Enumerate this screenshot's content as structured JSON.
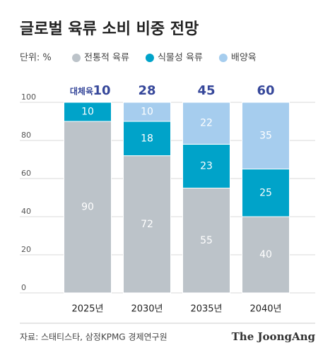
{
  "chart_data": {
    "type": "stacked_bar",
    "title": "글로벌 육류 소비 비중 전망",
    "unit": "단위: %",
    "categories": [
      "2025년",
      "2030년",
      "2035년",
      "2040년"
    ],
    "series": [
      {
        "name": "전통적 육류",
        "color": "#bcc3c9",
        "values": [
          90,
          72,
          55,
          40
        ]
      },
      {
        "name": "식물성 육류",
        "color": "#00a3c9",
        "values": [
          10,
          18,
          23,
          25
        ]
      },
      {
        "name": "배양육",
        "color": "#a6cdee",
        "values": [
          null,
          10,
          22,
          35
        ]
      }
    ],
    "totals": {
      "label": "대체육",
      "values": [
        10,
        28,
        45,
        60
      ]
    },
    "ylim": [
      0,
      100
    ],
    "yticks": [
      0,
      20,
      40,
      60,
      80,
      100
    ],
    "grid": true,
    "source": "자료: 스태티스타, 삼정KPMG 경제연구원",
    "brand": "The JoongAng"
  }
}
